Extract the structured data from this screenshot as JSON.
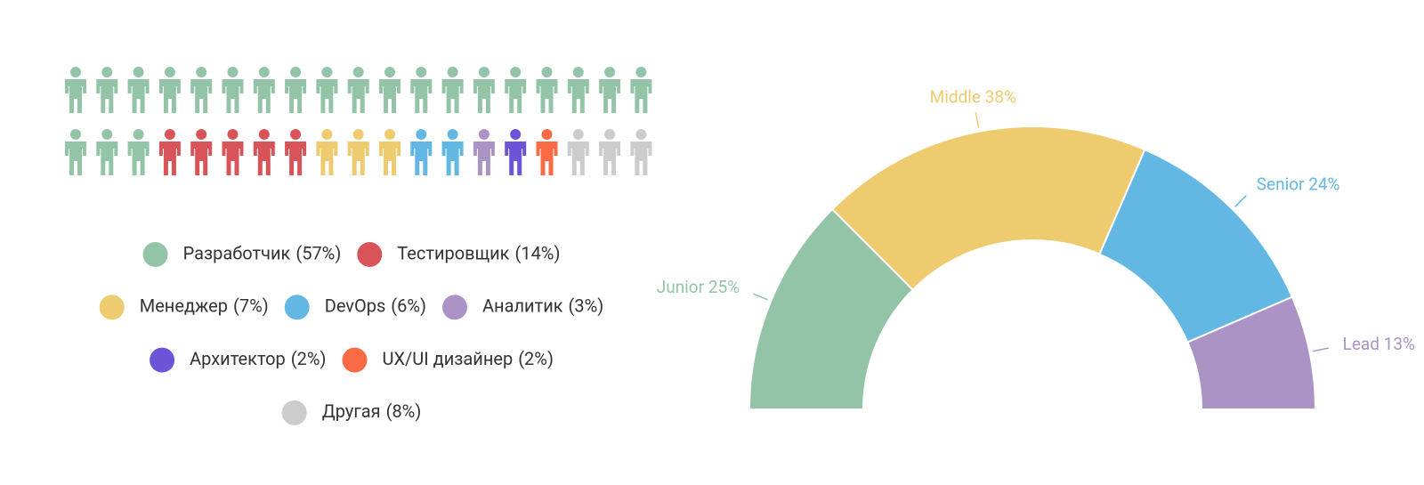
{
  "chart_data": [
    {
      "type": "pictogram",
      "categories": [
        "Разработчик",
        "Тестировщик",
        "Менеджер",
        "DevOps",
        "Аналитик",
        "Архитектор",
        "UX/UI дизайнер",
        "Другая"
      ],
      "values": [
        57,
        14,
        7,
        6,
        3,
        2,
        2,
        8
      ],
      "value_labels": [
        "(57%)",
        "(14%)",
        "(7%)",
        "(6%)",
        "(3%)",
        "(2%)",
        "(2%)",
        "(8%)"
      ],
      "colors": [
        "#93c4a8",
        "#d95459",
        "#eecb6f",
        "#62b7e3",
        "#ab94c5",
        "#6c54d8",
        "#f96a45",
        "#cccccc"
      ]
    },
    {
      "type": "half-donut",
      "categories": [
        "Junior",
        "Middle",
        "Senior",
        "Lead"
      ],
      "values": [
        25,
        38,
        24,
        13
      ],
      "value_labels": [
        "25%",
        "38%",
        "24%",
        "13%"
      ],
      "colors": [
        "#93c4a8",
        "#eecb6f",
        "#62b7e3",
        "#ab94c5"
      ]
    }
  ]
}
